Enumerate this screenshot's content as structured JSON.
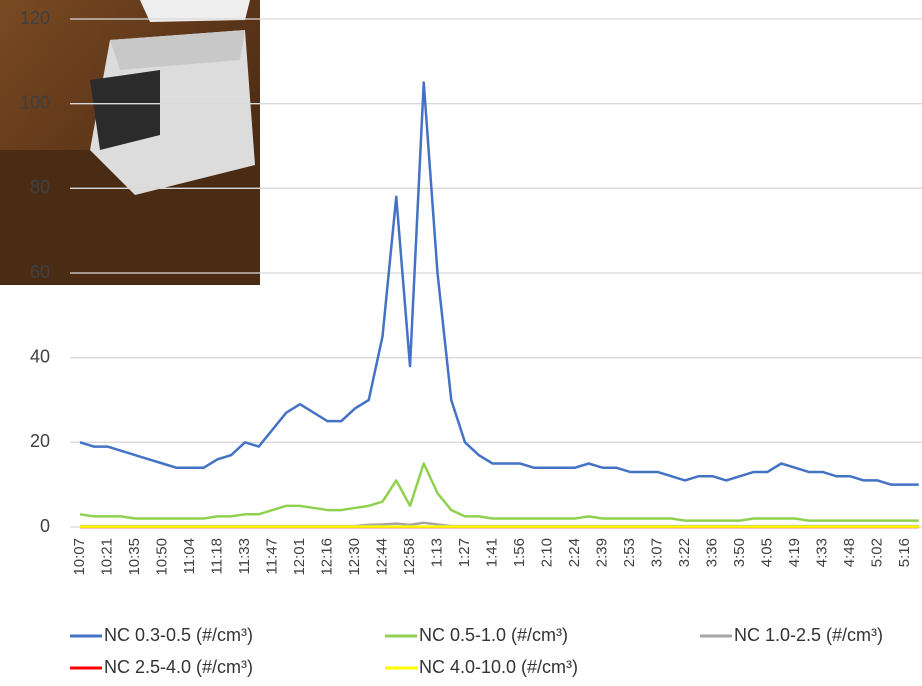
{
  "chart_data": {
    "type": "line",
    "categories": [
      "10:07",
      null,
      "10:21",
      null,
      "10:35",
      null,
      "10:50",
      null,
      "11:04",
      null,
      "11:18",
      null,
      "11:33",
      null,
      "11:47",
      null,
      "12:01",
      null,
      "12:16",
      null,
      "12:30",
      null,
      "12:44",
      null,
      "12:58",
      null,
      "1:13",
      null,
      "1:27",
      null,
      "1:41",
      null,
      "1:56",
      null,
      "2:10",
      null,
      "2:24",
      null,
      "2:39",
      null,
      "2:53",
      null,
      "3:07",
      null,
      "3:22",
      null,
      "3:36",
      null,
      "3:50",
      null,
      "4:05",
      null,
      "4:19",
      null,
      "4:33",
      null,
      "4:48",
      null,
      "5:02",
      null,
      "5:16",
      null
    ],
    "series": [
      {
        "name": "NC 0.3-0.5 (#/cm³)",
        "color": "#4472c4",
        "values": [
          20,
          19,
          19,
          18,
          17,
          16,
          15,
          14,
          14,
          14,
          16,
          17,
          20,
          19,
          23,
          27,
          29,
          27,
          25,
          25,
          28,
          30,
          45,
          78,
          38,
          105,
          60,
          30,
          20,
          17,
          15,
          15,
          15,
          14,
          14,
          14,
          14,
          15,
          14,
          14,
          13,
          13,
          13,
          12,
          11,
          12,
          12,
          11,
          12,
          13,
          13,
          15,
          14,
          13,
          13,
          12,
          12,
          11,
          11,
          10,
          10,
          10
        ]
      },
      {
        "name": "NC 0.5-1.0 (#/cm³)",
        "color": "#8fd14f",
        "values": [
          3,
          2.5,
          2.5,
          2.5,
          2,
          2,
          2,
          2,
          2,
          2,
          2.5,
          2.5,
          3,
          3,
          4,
          5,
          5,
          4.5,
          4,
          4,
          4.5,
          5,
          6,
          11,
          5,
          15,
          8,
          4,
          2.5,
          2.5,
          2,
          2,
          2,
          2,
          2,
          2,
          2,
          2.5,
          2,
          2,
          2,
          2,
          2,
          2,
          1.5,
          1.5,
          1.5,
          1.5,
          1.5,
          2,
          2,
          2,
          2,
          1.5,
          1.5,
          1.5,
          1.5,
          1.5,
          1.5,
          1.5,
          1.5,
          1.5
        ]
      },
      {
        "name": "NC 1.0-2.5 (#/cm³)",
        "color": "#a5a5a5",
        "values": [
          0.2,
          0.2,
          0.2,
          0.2,
          0.2,
          0.2,
          0.2,
          0.2,
          0.2,
          0.2,
          0.2,
          0.2,
          0.2,
          0.2,
          0.2,
          0.2,
          0.2,
          0.2,
          0.2,
          0.2,
          0.2,
          0.5,
          0.6,
          0.8,
          0.5,
          1,
          0.6,
          0.2,
          0.2,
          0.2,
          0.2,
          0.2,
          0.2,
          0.2,
          0.2,
          0.2,
          0.2,
          0.2,
          0.2,
          0.2,
          0.2,
          0.2,
          0.2,
          0.2,
          0.2,
          0.2,
          0.2,
          0.2,
          0.2,
          0.2,
          0.2,
          0.2,
          0.2,
          0.2,
          0.2,
          0.2,
          0.2,
          0.2,
          0.2,
          0.2,
          0.2,
          0.2
        ]
      },
      {
        "name": "NC 2.5-4.0 (#/cm³)",
        "color": "#ff0000",
        "values": [
          0,
          0,
          0,
          0,
          0,
          0,
          0,
          0,
          0,
          0,
          0,
          0,
          0,
          0,
          0,
          0,
          0,
          0,
          0,
          0,
          0,
          0,
          0,
          0,
          0,
          0,
          0,
          0,
          0,
          0,
          0,
          0,
          0,
          0,
          0,
          0,
          0,
          0,
          0,
          0,
          0,
          0,
          0,
          0,
          0,
          0,
          0,
          0,
          0,
          0,
          0,
          0,
          0,
          0,
          0,
          0,
          0,
          0,
          0,
          0,
          0,
          0
        ]
      },
      {
        "name": "NC 4.0-10.0 (#/cm³)",
        "color": "#ffff00",
        "values": [
          0.1,
          0.1,
          0.1,
          0.1,
          0.1,
          0.1,
          0.1,
          0.1,
          0.1,
          0.1,
          0.1,
          0.1,
          0.1,
          0.1,
          0.1,
          0.1,
          0.1,
          0.1,
          0.1,
          0.1,
          0.1,
          0.1,
          0.1,
          0.1,
          0.1,
          0.1,
          0.1,
          0.1,
          0.1,
          0.1,
          0.1,
          0.1,
          0.1,
          0.1,
          0.1,
          0.1,
          0.1,
          0.1,
          0.1,
          0.1,
          0.1,
          0.1,
          0.1,
          0.1,
          0.1,
          0.1,
          0.1,
          0.1,
          0.1,
          0.1,
          0.1,
          0.1,
          0.1,
          0.1,
          0.1,
          0.1,
          0.1,
          0.1,
          0.1,
          0.1,
          0.1,
          0.1
        ]
      }
    ],
    "ylim": [
      0,
      120
    ],
    "yticks": [
      0,
      20,
      40,
      60,
      80,
      100,
      120
    ],
    "grid": true,
    "legend": "bottom"
  }
}
